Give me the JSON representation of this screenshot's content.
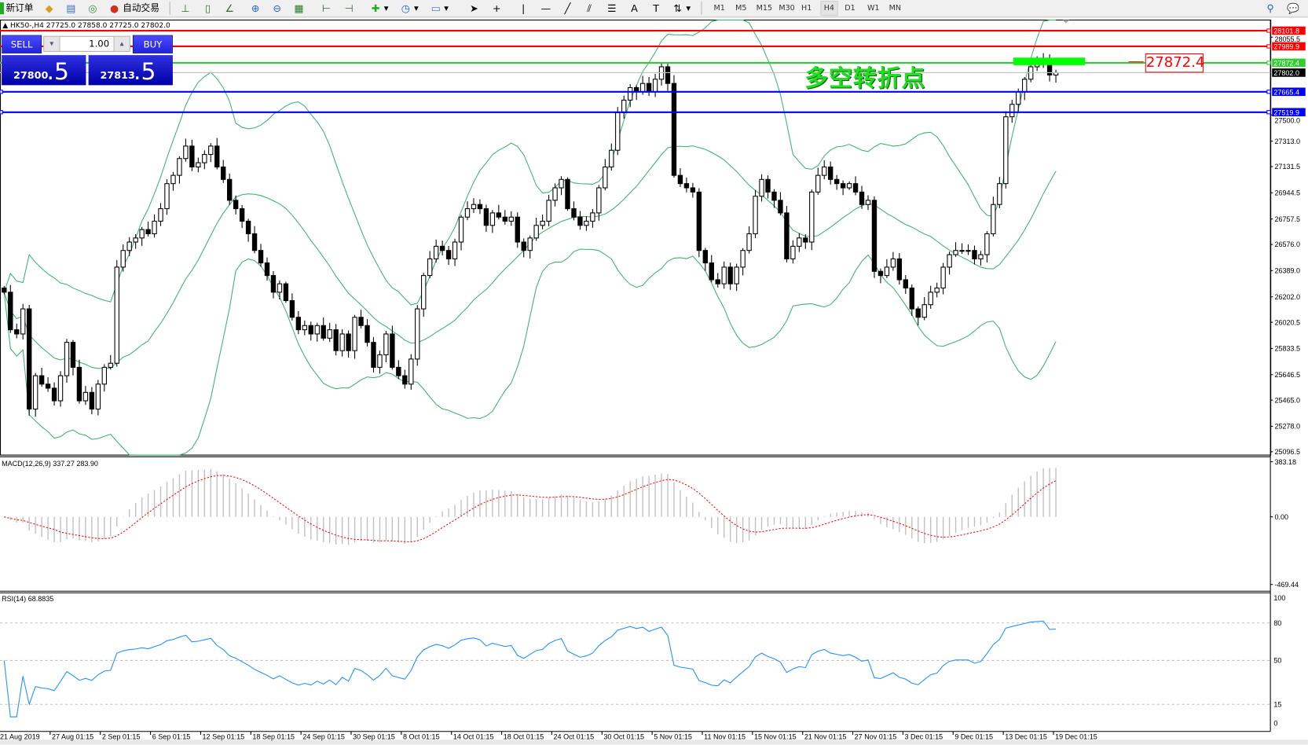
{
  "toolbar": {
    "new_order": "新订单",
    "auto_trade": "自动交易",
    "timeframes": [
      "M1",
      "M5",
      "M15",
      "M30",
      "H1",
      "H4",
      "D1",
      "W1",
      "MN"
    ],
    "active_timeframe": "H4"
  },
  "chart": {
    "title": "HK50-,H4  27725.0 27858.0 27725.0 27802.0",
    "annotation": "多空转折点",
    "price_label": "27872.4"
  },
  "trade_panel": {
    "sell_label": "SELL",
    "buy_label": "BUY",
    "lot": "1.00",
    "bid_main": "27800",
    "bid_pip": ".5",
    "ask_main": "27813",
    "ask_pip": ".5"
  },
  "levels": [
    {
      "price": "28101.8",
      "color": "#ff0000",
      "label_bg": "#ff0000"
    },
    {
      "price": "27989.9",
      "color": "#ff0000",
      "label_bg": "#ff0000"
    },
    {
      "price": "27872.4",
      "color": "#33cc33",
      "label_bg": "#33cc33"
    },
    {
      "price": "27802.0",
      "color": "#c0c0c0",
      "label_bg": "#000000"
    },
    {
      "price": "27665.4",
      "color": "#0000ff",
      "label_bg": "#0000ff"
    },
    {
      "price": "27519.9",
      "color": "#0000ff",
      "label_bg": "#0000ff"
    }
  ],
  "price_axis": {
    "ticks": [
      "28055.5",
      "27500.0",
      "27313.0",
      "27131.5",
      "26944.5",
      "26757.5",
      "26576.0",
      "26389.0",
      "26202.0",
      "26020.5",
      "25833.5",
      "25646.5",
      "25465.0",
      "25278.0",
      "25096.5"
    ]
  },
  "macd": {
    "label": "MACD(12,26,9) 337.27 283.90",
    "ticks": [
      "383.18",
      "0.00",
      "-469.44"
    ]
  },
  "rsi": {
    "label": "RSI(14) 68.8835",
    "ticks": [
      "100",
      "80",
      "50",
      "15",
      "0"
    ]
  },
  "time_axis": [
    "21 Aug 2019",
    "27 Aug 01:15",
    "2 Sep 01:15",
    "6 Sep 01:15",
    "12 Sep 01:15",
    "18 Sep 01:15",
    "24 Sep 01:15",
    "30 Sep 01:15",
    "8 Oct 01:15",
    "14 Oct 01:15",
    "18 Oct 01:15",
    "24 Oct 01:15",
    "30 Oct 01:15",
    "5 Nov 01:15",
    "11 Nov 01:15",
    "15 Nov 01:15",
    "21 Nov 01:15",
    "27 Nov 01:15",
    "3 Dec 01:15",
    "9 Dec 01:15",
    "13 Dec 01:15",
    "19 Dec 01:15"
  ],
  "colors": {
    "bands": "#3cb371",
    "macd_hist": "#c0c0c0",
    "macd_signal": "#ff0000",
    "rsi": "#1e90ff",
    "annotation": "#22dd22",
    "marker_box": "#00ff00"
  },
  "price_series": {
    "type": "candlestick",
    "closes": [
      26235,
      25967,
      25937,
      26116,
      25401,
      25639,
      25579,
      25550,
      25460,
      25639,
      25877,
      25699,
      25460,
      25520,
      25401,
      25579,
      25699,
      25728,
      26414,
      26533,
      26593,
      26622,
      26682,
      26652,
      26742,
      26831,
      27010,
      27069,
      27189,
      27278,
      27129,
      27159,
      27218,
      27278,
      27129,
      27040,
      26891,
      26831,
      26742,
      26652,
      26533,
      26444,
      26354,
      26235,
      26295,
      26175,
      26056,
      25967,
      25997,
      25937,
      25997,
      25907,
      25967,
      25818,
      25937,
      25818,
      26056,
      25997,
      25877,
      25699,
      25788,
      25937,
      25699,
      25639,
      25579,
      25758,
      26116,
      26354,
      26473,
      26563,
      26533,
      26473,
      26593,
      26771,
      26831,
      26861,
      26831,
      26712,
      26801,
      26771,
      26742,
      26771,
      26593,
      26533,
      26622,
      26712,
      26742,
      26891,
      26980,
      27040,
      26831,
      26771,
      26712,
      26742,
      26801,
      26980,
      27129,
      27248,
      27516,
      27606,
      27695,
      27665,
      27725,
      27665,
      27755,
      27844,
      27725,
      27069,
      27010,
      26980,
      26950,
      26533,
      26444,
      26324,
      26295,
      26414,
      26295,
      26414,
      26533,
      26652,
      26920,
      27040,
      26950,
      26891,
      26801,
      26473,
      26563,
      26622,
      26593,
      26950,
      27069,
      27129,
      27040,
      27010,
      26980,
      27010,
      26950,
      26861,
      26891,
      26384,
      26354,
      26414,
      26473,
      26324,
      26265,
      26116,
      26056,
      26146,
      26235,
      26265,
      26414,
      26503,
      26533,
      26533,
      26533,
      26473,
      26503,
      26652,
      26861,
      27010,
      27487,
      27576,
      27665,
      27755,
      27844,
      27874,
      27904,
      27785,
      27802
    ]
  }
}
